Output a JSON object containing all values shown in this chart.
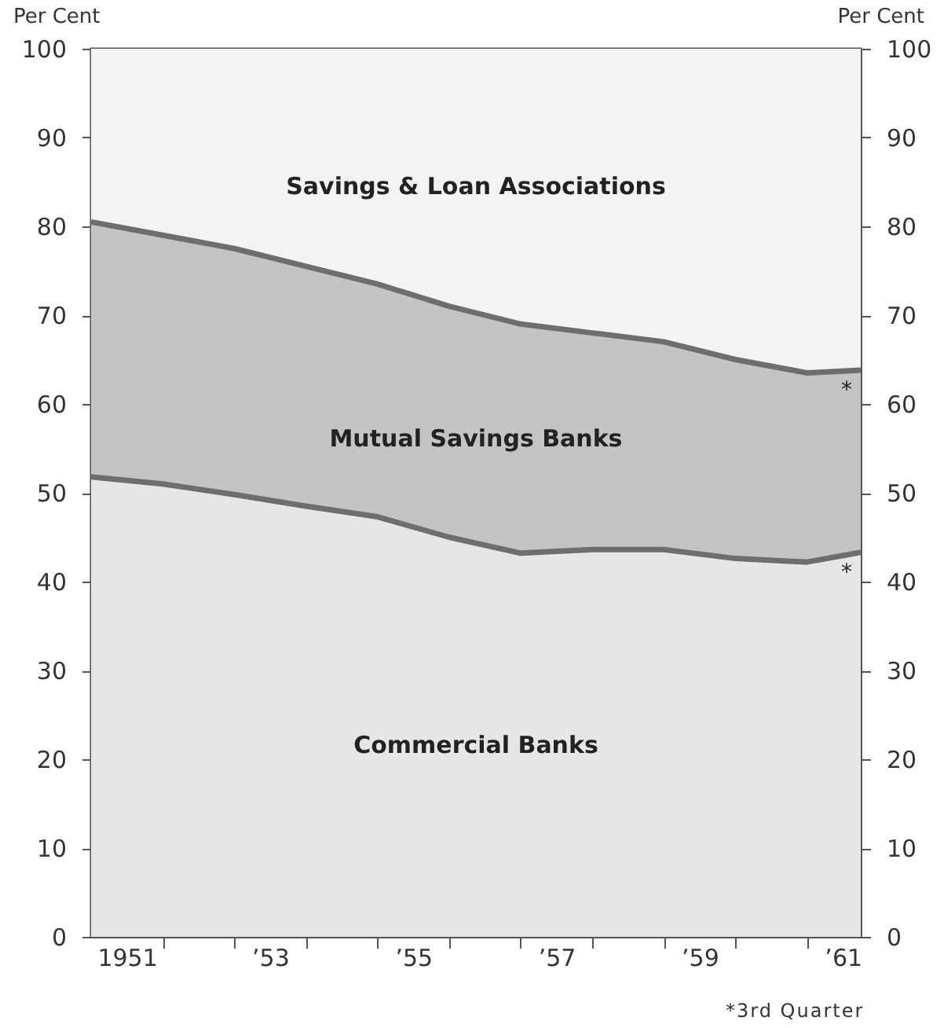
{
  "chart_data": {
    "type": "area",
    "stacked": true,
    "ylabel": "Per Cent",
    "y2label": "Per Cent",
    "x": [
      1950.5,
      1951.5,
      1952.5,
      1953.5,
      1954.5,
      1955.5,
      1956.5,
      1957.5,
      1958.5,
      1959.5,
      1960.5,
      1961.25
    ],
    "series": [
      {
        "name": "Commercial Banks",
        "color": "#e6e6e6",
        "values": [
          51.8,
          51,
          49.8,
          48.5,
          47.3,
          45,
          43.2,
          43.6,
          43.6,
          42.6,
          42.2,
          43.3
        ]
      },
      {
        "name": "Mutual Savings Banks",
        "color": "#c4c4c4",
        "values": [
          28.7,
          28,
          27.7,
          27,
          26.2,
          26,
          25.8,
          24.4,
          23.4,
          22.4,
          21.3,
          20.5
        ]
      },
      {
        "name": "Savings & Loan Associations",
        "color": "#f3f3f3",
        "values": [
          19.5,
          21,
          22.5,
          24.5,
          26.5,
          29,
          31,
          32,
          33,
          35,
          36.5,
          36.2
        ]
      }
    ],
    "xlim": [
      1950.5,
      1961.25
    ],
    "xticks": [
      {
        "value": 1951,
        "label": "1951"
      },
      {
        "value": 1951.5,
        "label": null
      },
      {
        "value": 1952.5,
        "label": null
      },
      {
        "value": 1953,
        "label": "’53"
      },
      {
        "value": 1953.5,
        "label": null
      },
      {
        "value": 1954.5,
        "label": null
      },
      {
        "value": 1955,
        "label": "’55"
      },
      {
        "value": 1955.5,
        "label": null
      },
      {
        "value": 1956.5,
        "label": null
      },
      {
        "value": 1957,
        "label": "’57"
      },
      {
        "value": 1957.5,
        "label": null
      },
      {
        "value": 1958.5,
        "label": null
      },
      {
        "value": 1959,
        "label": "’59"
      },
      {
        "value": 1959.5,
        "label": null
      },
      {
        "value": 1960.5,
        "label": null
      },
      {
        "value": 1961,
        "label": "’61"
      }
    ],
    "ylim": [
      0,
      100
    ],
    "yticks": [
      0,
      10,
      20,
      30,
      40,
      50,
      60,
      70,
      80,
      90,
      100
    ],
    "y2lim": [
      0,
      100
    ],
    "y2ticks": [
      0,
      10,
      20,
      30,
      40,
      50,
      60,
      70,
      80,
      90,
      100
    ],
    "annotations": [
      {
        "text": "*",
        "x": 1961.25,
        "y": 63.8
      },
      {
        "text": "*",
        "x": 1961.25,
        "y": 43.3
      },
      "*3rd Quarter"
    ]
  }
}
